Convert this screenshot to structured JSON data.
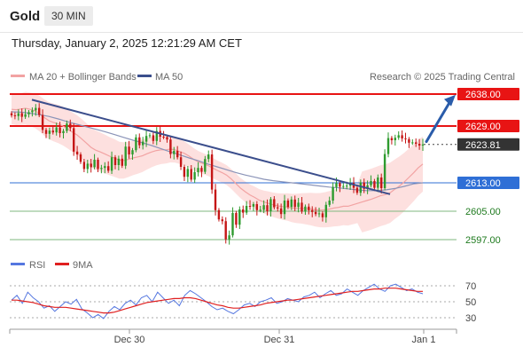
{
  "header": {
    "symbol": "Gold",
    "timeframe": "30 MIN",
    "datetime": "Thursday, January 2, 2025 12:21:29 AM CET"
  },
  "legend": {
    "ma20_label": "MA 20 + Bollinger Bands",
    "ma50_label": "MA 50",
    "copyright": "Research © 2025 Trading Central",
    "rsi_label": "RSI",
    "rsi_ma_label": "9MA"
  },
  "colors": {
    "resistance": "#e81414",
    "current": "#333333",
    "support_main": "#2f6fd6",
    "support_minor": "#1e7a1e",
    "ma20": "#f2a3a3",
    "ma50": "#3b4e8c",
    "candle_up": "#2e9b2e",
    "candle_down": "#c51616",
    "band": "#fde0df",
    "trend": "#3b4e8c",
    "arrow": "#2a5caa",
    "rsi": "#5577e0",
    "rsi_ma": "#e02020"
  },
  "chart_data": [
    {
      "type": "candlestick",
      "title": "",
      "x_ticks": [
        "Dec 30",
        "Dec 31",
        "Jan 1"
      ],
      "ylim": [
        2594,
        2642
      ],
      "levels": [
        {
          "label": "2638.00",
          "value": 2638.0,
          "kind": "resistance"
        },
        {
          "label": "2629.00",
          "value": 2629.0,
          "kind": "resistance"
        },
        {
          "label": "2623.81",
          "value": 2623.81,
          "kind": "current"
        },
        {
          "label": "2613.00",
          "value": 2613.0,
          "kind": "support"
        },
        {
          "label": "2605.00",
          "value": 2605.0,
          "kind": "support-minor"
        },
        {
          "label": "2597.00",
          "value": 2597.0,
          "kind": "support-minor"
        }
      ],
      "close": [
        2632.0,
        2631.8,
        2632.6,
        2631.6,
        2632.3,
        2632.9,
        2633.4,
        2634.1,
        2632.1,
        2627.9,
        2626.8,
        2627.7,
        2627.2,
        2628.6,
        2627.0,
        2627.6,
        2629.7,
        2628.4,
        2621.8,
        2621.0,
        2618.9,
        2616.9,
        2618.4,
        2617.4,
        2619.5,
        2616.9,
        2617.2,
        2617.7,
        2616.4,
        2620.2,
        2618.0,
        2619.8,
        2617.8,
        2623.2,
        2621.0,
        2622.2,
        2625.8,
        2623.6,
        2624.6,
        2626.2,
        2626.4,
        2624.8,
        2627.6,
        2626.0,
        2625.9,
        2625.2,
        2621.1,
        2622.0,
        2620.2,
        2617.5,
        2614.7,
        2616.9,
        2613.9,
        2616.0,
        2617.2,
        2616.1,
        2619.7,
        2621.0,
        2611.1,
        2605.3,
        2602.7,
        2602.2,
        2597.1,
        2598.2,
        2604.5,
        2601.2,
        2605.5,
        2604.6,
        2606.5,
        2606.3,
        2607.0,
        2605.3,
        2605.4,
        2606.7,
        2605.0,
        2608.4,
        2606.1,
        2605.8,
        2604.2,
        2608.0,
        2606.2,
        2608.3,
        2606.2,
        2607.4,
        2604.9,
        2606.3,
        2605.3,
        2604.8,
        2604.2,
        2604.4,
        2603.3,
        2606.8,
        2608.0,
        2611.8,
        2612.9,
        2611.9,
        2612.1,
        2612.2,
        2613.0,
        2611.6,
        2610.2,
        2613.1,
        2611.3,
        2612.3,
        2613.5,
        2611.6,
        2614.5,
        2611.5,
        2621.1,
        2625.6,
        2625.0,
        2625.7,
        2626.4,
        2625.5,
        2625.3,
        2624.3,
        2624.4,
        2624.0,
        2623.5,
        2623.81
      ],
      "ma20": [
        2633.7,
        2633.6,
        2633.8,
        2634.0,
        2633.7,
        2633.3,
        2632.5,
        2631.4,
        2630.5,
        2630.0,
        2629.6,
        2629.0,
        2628.2,
        2627.3,
        2626.5,
        2625.4,
        2624.2,
        2623.0,
        2622.2,
        2621.7,
        2621.1,
        2620.5,
        2620.0,
        2619.4,
        2619.3,
        2619.6,
        2620.0,
        2620.3,
        2620.6,
        2621.2,
        2621.7,
        2622.1,
        2622.3,
        2622.3,
        2622.5,
        2622.3,
        2621.8,
        2621.3,
        2620.5,
        2619.6,
        2618.9,
        2618.4,
        2617.9,
        2617.2,
        2616.5,
        2615.9,
        2615.2,
        2614.1,
        2612.8,
        2611.5,
        2610.5,
        2609.6,
        2608.9,
        2608.1,
        2607.6,
        2607.2,
        2606.8,
        2606.5,
        2606.3,
        2606.2,
        2605.9,
        2605.8,
        2605.8,
        2605.7,
        2605.6,
        2605.4,
        2605.3,
        2605.4,
        2605.6,
        2605.9,
        2606.1,
        2606.4,
        2606.4,
        2606.8,
        2607.2,
        2607.6,
        2608.0,
        2608.4,
        2608.9,
        2609.4,
        2609.7,
        2610.2,
        2611.2,
        2612.1,
        2613.2,
        2614.5,
        2615.8,
        2617.2,
        2618.3
      ],
      "ma50": [
        2633.0,
        2632.9,
        2632.6,
        2632.2,
        2631.7,
        2631.0,
        2630.2,
        2629.5,
        2628.8,
        2628.1,
        2627.4,
        2626.6,
        2625.8,
        2625.0,
        2624.3,
        2623.5,
        2622.6,
        2621.7,
        2620.9,
        2620.0,
        2619.2,
        2618.3,
        2617.5,
        2616.7,
        2615.9,
        2615.2,
        2614.6,
        2614.0,
        2613.6,
        2613.3,
        2613.0,
        2612.7,
        2612.4,
        2612.1,
        2611.8,
        2611.6,
        2611.3,
        2611.0,
        2610.8,
        2610.8,
        2611.0,
        2611.4,
        2612.0,
        2612.7,
        2613.0
      ],
      "rsi": [
        52,
        58,
        48,
        62,
        55,
        50,
        42,
        45,
        38,
        44,
        50,
        47,
        53,
        41,
        36,
        30,
        34,
        29,
        38,
        44,
        40,
        48,
        52,
        46,
        55,
        58,
        50,
        62,
        55,
        48,
        52,
        45,
        58,
        64,
        60,
        55,
        50,
        44,
        40,
        42,
        38,
        35,
        40,
        46,
        48,
        44,
        50,
        52,
        55,
        48,
        50,
        54,
        52,
        50,
        56,
        58,
        62,
        55,
        60,
        64,
        58,
        60,
        66,
        62,
        58,
        64,
        68,
        72,
        66,
        63,
        70,
        72,
        68,
        64,
        66,
        62,
        60
      ],
      "rsi_ma": [
        52,
        52,
        51,
        50,
        49,
        47,
        45,
        44,
        43,
        43,
        43,
        42,
        41,
        40,
        39,
        38,
        37,
        36,
        36,
        37,
        39,
        41,
        43,
        45,
        47,
        49,
        50,
        51,
        52,
        53,
        54,
        54,
        55,
        55,
        54,
        52,
        50,
        48,
        46,
        45,
        43,
        42,
        42,
        43,
        44,
        45,
        46,
        48,
        49,
        50,
        51,
        52,
        52,
        53,
        54,
        55,
        56,
        57,
        58,
        59,
        60,
        61,
        62,
        63,
        63,
        64,
        65,
        66,
        66,
        67,
        67,
        67,
        66,
        65,
        64,
        63,
        63
      ],
      "rsi_ticks": [
        "70",
        "50",
        "30"
      ]
    }
  ]
}
